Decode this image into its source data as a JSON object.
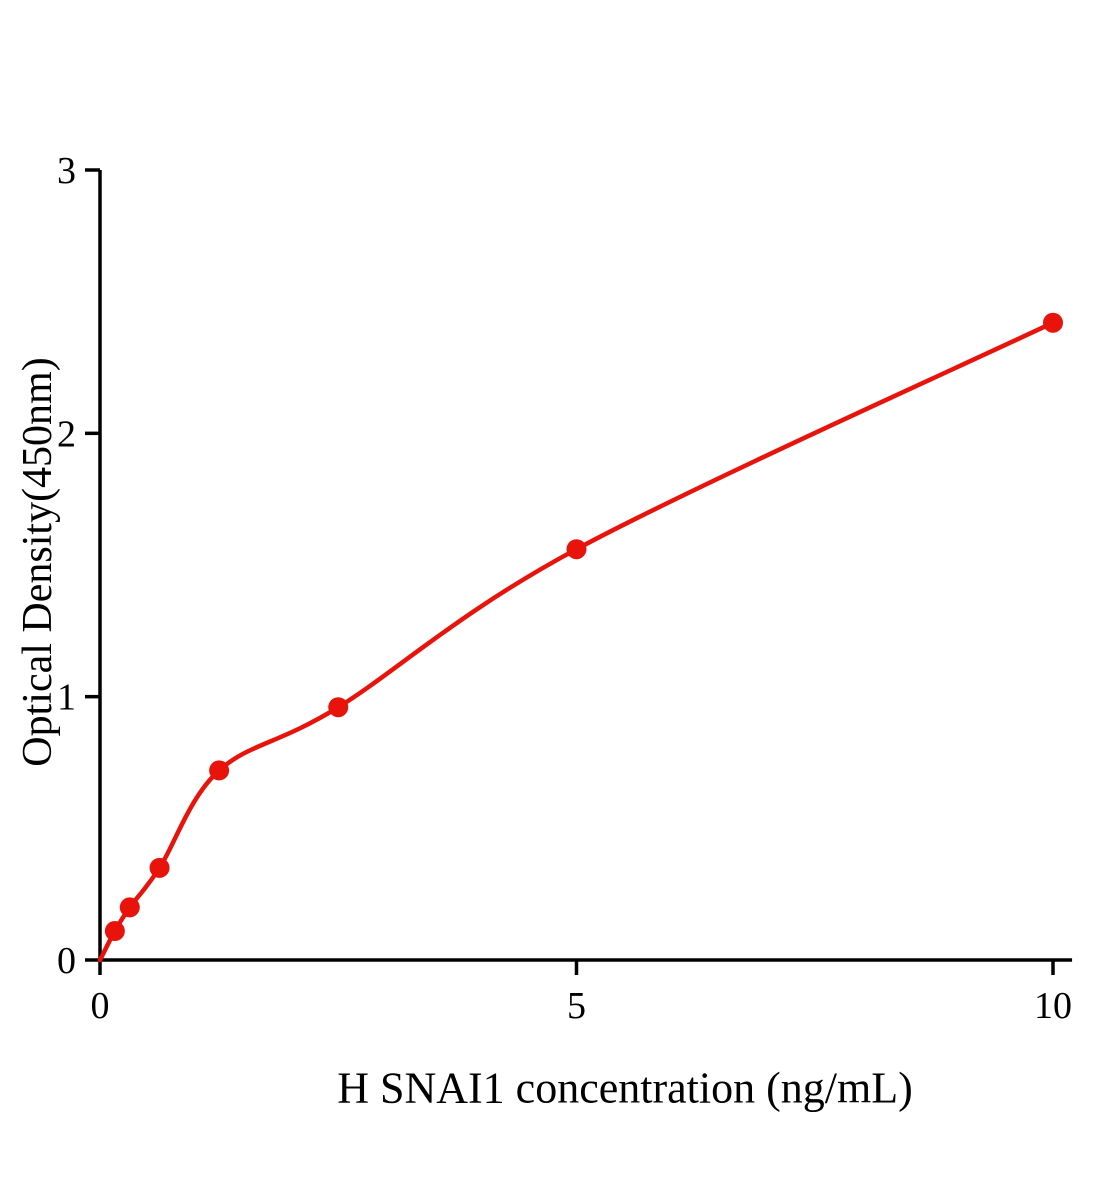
{
  "chart_data": {
    "type": "scatter",
    "title": "",
    "xlabel": "H SNAI1 concentration (ng/mL)",
    "ylabel": "Optical Density(450nm)",
    "xlim": [
      0,
      10.2
    ],
    "ylim": [
      0,
      3
    ],
    "x_ticks": [
      0,
      5,
      10
    ],
    "y_ticks": [
      0,
      1,
      2,
      3
    ],
    "grid": false,
    "legend": "none",
    "curve_color": "#e8130b",
    "axis_color": "#000000",
    "points": {
      "x": [
        0.156,
        0.3125,
        0.625,
        1.25,
        2.5,
        5,
        10
      ],
      "y": [
        0.11,
        0.2,
        0.35,
        0.72,
        0.96,
        1.56,
        2.42
      ]
    },
    "fit_curve_start": [
      0,
      0
    ]
  }
}
